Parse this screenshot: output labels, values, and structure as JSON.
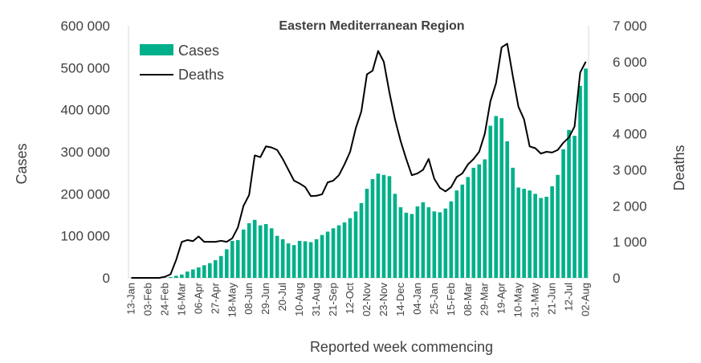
{
  "chart_data": {
    "type": "bar+line",
    "title": "Eastern Mediterranean Region",
    "xlabel": "Reported week commencing",
    "ylabel_left": "Cases",
    "ylabel_right": "Deaths",
    "ylim_left": [
      0,
      600000
    ],
    "ylim_right": [
      0,
      7000
    ],
    "yticks_left": [
      "0",
      "100 000",
      "200 000",
      "300 000",
      "400 000",
      "500 000",
      "600 000"
    ],
    "yticks_right": [
      "0",
      "1 000",
      "2 000",
      "3 000",
      "4 000",
      "5 000",
      "6 000",
      "7 000"
    ],
    "grid": false,
    "legend_position": "top-left",
    "colors": {
      "cases": "#00B08A",
      "deaths": "#000000",
      "text": "#404040",
      "axis": "#d9d9d9"
    },
    "categories": [
      "13-Jan",
      "20-Jan",
      "27-Jan",
      "03-Feb",
      "10-Feb",
      "17-Feb",
      "24-Feb",
      "02-Mar",
      "09-Mar",
      "16-Mar",
      "23-Mar",
      "30-Mar",
      "06-Apr",
      "13-Apr",
      "20-Apr",
      "27-Apr",
      "04-May",
      "11-May",
      "18-May",
      "25-May",
      "01-Jun",
      "08-Jun",
      "15-Jun",
      "22-Jun",
      "29-Jun",
      "06-Jul",
      "13-Jul",
      "20-Jul",
      "27-Jul",
      "03-Aug",
      "10-Aug",
      "17-Aug",
      "24-Aug",
      "31-Aug",
      "07-Sep",
      "14-Sep",
      "21-Sep",
      "28-Sep",
      "05-Oct",
      "12-Oct",
      "19-Oct",
      "26-Oct",
      "02-Nov",
      "09-Nov",
      "16-Nov",
      "23-Nov",
      "30-Nov",
      "07-Dec",
      "14-Dec",
      "21-Dec",
      "28-Dec",
      "04-Jan",
      "11-Jan",
      "18-Jan",
      "25-Jan",
      "01-Feb",
      "08-Feb",
      "15-Feb",
      "22-Feb",
      "01-Mar",
      "08-Mar",
      "15-Mar",
      "22-Mar",
      "29-Mar",
      "05-Apr",
      "12-Apr",
      "19-Apr",
      "26-Apr",
      "03-May",
      "10-May",
      "17-May",
      "24-May",
      "31-May",
      "07-Jun",
      "14-Jun",
      "21-Jun",
      "28-Jun",
      "05-Jul",
      "12-Jul",
      "19-Jul",
      "26-Jul",
      "02-Aug"
    ],
    "x_tick_labels": [
      "13-Jan",
      "03-Feb",
      "24-Feb",
      "16-Mar",
      "06-Apr",
      "27-Apr",
      "18-May",
      "08-Jun",
      "29-Jun",
      "20-Jul",
      "10-Aug",
      "31-Aug",
      "21-Sep",
      "12-Oct",
      "02-Nov",
      "23-Nov",
      "14-Dec",
      "04-Jan",
      "25-Jan",
      "15-Feb",
      "08-Mar",
      "29-Mar",
      "19-Apr",
      "10-May",
      "31-May",
      "21-Jun",
      "12-Jul",
      "02-Aug"
    ],
    "series": [
      {
        "name": "Cases",
        "type": "bar",
        "values": [
          0,
          0,
          0,
          0,
          0,
          0,
          500,
          2000,
          5000,
          8000,
          15000,
          20000,
          25000,
          30000,
          35000,
          42000,
          52000,
          68000,
          88000,
          90000,
          115000,
          130000,
          138000,
          125000,
          128000,
          118000,
          100000,
          92000,
          82000,
          78000,
          88000,
          87000,
          85000,
          92000,
          102000,
          110000,
          118000,
          125000,
          132000,
          142000,
          158000,
          178000,
          212000,
          235000,
          248000,
          245000,
          242000,
          200000,
          168000,
          155000,
          152000,
          170000,
          180000,
          168000,
          158000,
          156000,
          165000,
          182000,
          208000,
          222000,
          240000,
          262000,
          270000,
          282000,
          362000,
          385000,
          380000,
          325000,
          262000,
          215000,
          212000,
          208000,
          200000,
          190000,
          193000,
          218000,
          245000,
          306000,
          352000,
          338000,
          457000,
          498000
        ]
      },
      {
        "name": "Deaths",
        "type": "line",
        "values": [
          0,
          0,
          0,
          0,
          0,
          0,
          30,
          100,
          500,
          1000,
          1050,
          1020,
          1150,
          1000,
          1000,
          1000,
          1030,
          1000,
          1100,
          1400,
          2000,
          2300,
          3400,
          3350,
          3650,
          3620,
          3550,
          3300,
          3000,
          2700,
          2620,
          2520,
          2270,
          2280,
          2320,
          2650,
          2700,
          2850,
          3150,
          3500,
          4150,
          4620,
          5650,
          5750,
          6300,
          6000,
          5150,
          4400,
          3800,
          3300,
          2850,
          2900,
          3000,
          3300,
          2750,
          2500,
          2400,
          2520,
          2800,
          2900,
          3150,
          3300,
          3500,
          4000,
          4900,
          5400,
          6400,
          6500,
          5600,
          4750,
          4400,
          3650,
          3600,
          3450,
          3500,
          3480,
          3550,
          3750,
          3900,
          4200,
          5700,
          6000
        ]
      }
    ]
  }
}
